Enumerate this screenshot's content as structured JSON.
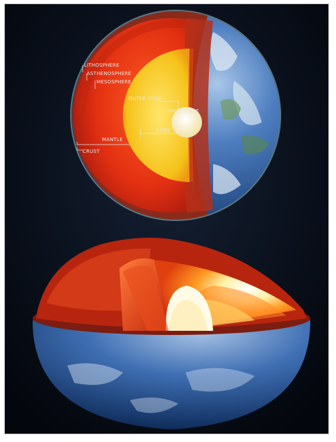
{
  "labels": {
    "lithosphere": "LITHOSPHERE",
    "asthenosphere": "ASTHENOSPHERE",
    "mesosphere": "MESOSPHERE",
    "outer_core": "OUTER CORE",
    "inner_core": "INNER CORE",
    "core": "CORE",
    "mantle": "MANTLE",
    "crust": "CRUST"
  },
  "colors": {
    "background": "#070b14",
    "ocean": "#2f63a8",
    "crust": "#9c2b18",
    "mantle": "#e8320f",
    "outer_core": "#f2c21a",
    "inner_core": "#fff6d8"
  }
}
